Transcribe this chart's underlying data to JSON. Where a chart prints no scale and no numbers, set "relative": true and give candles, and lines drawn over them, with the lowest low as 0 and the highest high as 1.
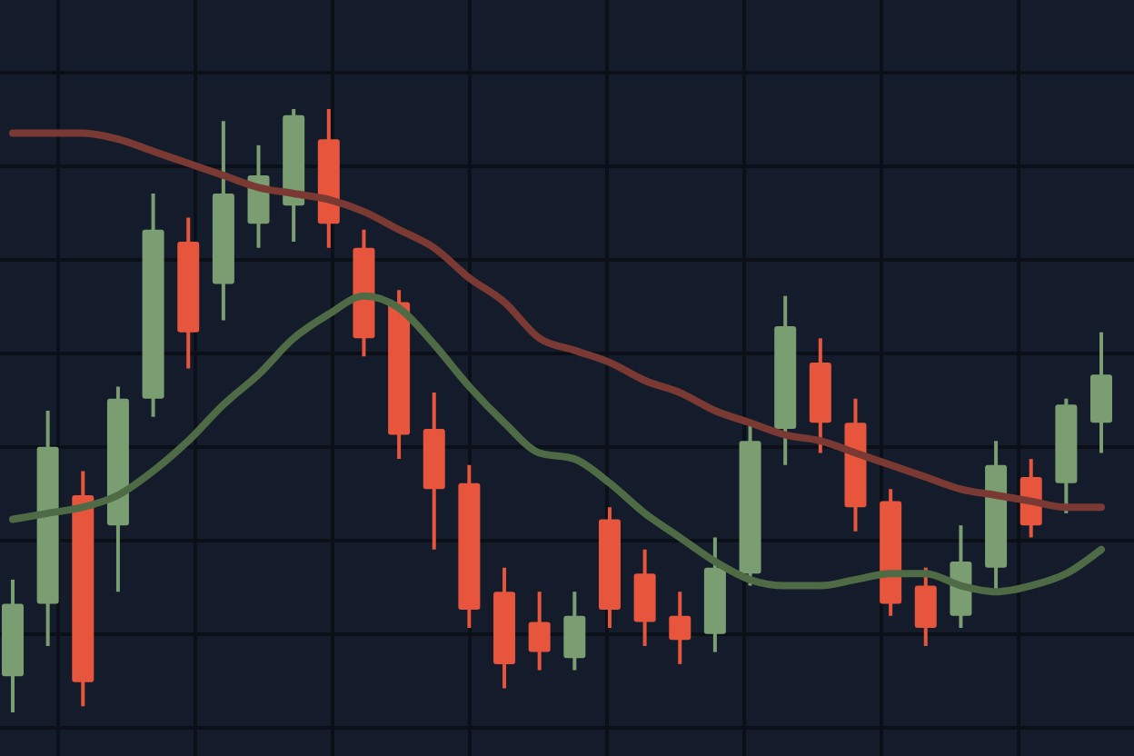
{
  "chart_data": {
    "type": "candlestick",
    "relative": true,
    "grid": true,
    "categories": [
      null,
      null,
      null,
      null,
      null,
      null,
      null,
      null,
      null,
      null,
      null,
      null,
      null,
      null,
      null,
      null,
      null,
      null,
      null,
      null,
      null,
      null,
      null,
      null,
      null,
      null,
      null,
      null,
      null,
      null,
      null,
      null
    ],
    "ohlc": [
      [
        0.06,
        0.22,
        0,
        0.18
      ],
      [
        0.18,
        0.5,
        0.11,
        0.44
      ],
      [
        0.36,
        0.4,
        0.01,
        0.05
      ],
      [
        0.31,
        0.54,
        0.2,
        0.52
      ],
      [
        0.52,
        0.86,
        0.49,
        0.8
      ],
      [
        0.78,
        0.82,
        0.57,
        0.63
      ],
      [
        0.71,
        0.98,
        0.65,
        0.86
      ],
      [
        0.81,
        0.94,
        0.77,
        0.89
      ],
      [
        0.84,
        1,
        0.78,
        0.99
      ],
      [
        0.95,
        1,
        0.77,
        0.81
      ],
      [
        0.77,
        0.8,
        0.59,
        0.62
      ],
      [
        0.68,
        0.7,
        0.42,
        0.46
      ],
      [
        0.47,
        0.53,
        0.27,
        0.37
      ],
      [
        0.38,
        0.41,
        0.14,
        0.17
      ],
      [
        0.2,
        0.24,
        0.04,
        0.08
      ],
      [
        0.15,
        0.2,
        0.07,
        0.1
      ],
      [
        0.09,
        0.2,
        0.07,
        0.16
      ],
      [
        0.32,
        0.34,
        0.14,
        0.17
      ],
      [
        0.23,
        0.27,
        0.11,
        0.15
      ],
      [
        0.16,
        0.2,
        0.08,
        0.12
      ],
      [
        0.13,
        0.29,
        0.1,
        0.24
      ],
      [
        0.23,
        0.48,
        0.21,
        0.45
      ],
      [
        0.47,
        0.69,
        0.41,
        0.64
      ],
      [
        0.58,
        0.62,
        0.43,
        0.48
      ],
      [
        0.48,
        0.52,
        0.3,
        0.34
      ],
      [
        0.35,
        0.37,
        0.16,
        0.18
      ],
      [
        0.21,
        0.24,
        0.11,
        0.14
      ],
      [
        0.16,
        0.31,
        0.14,
        0.25
      ],
      [
        0.24,
        0.45,
        0.2,
        0.41
      ],
      [
        0.39,
        0.42,
        0.29,
        0.31
      ],
      [
        0.38,
        0.52,
        0.33,
        0.51
      ],
      [
        0.48,
        0.63,
        0.43,
        0.56
      ]
    ],
    "colors": [
      "#7a9e72",
      "#7a9e72",
      "#e8553d",
      "#7a9e72",
      "#7a9e72",
      "#e8553d",
      "#7a9e72",
      "#7a9e72",
      "#7a9e72",
      "#e8553d",
      "#e8553d",
      "#e8553d",
      "#e8553d",
      "#e8553d",
      "#e8553d",
      "#e8553d",
      "#7a9e72",
      "#e8553d",
      "#e8553d",
      "#e8553d",
      "#7a9e72",
      "#7a9e72",
      "#7a9e72",
      "#e8553d",
      "#e8553d",
      "#e8553d",
      "#e8553d",
      "#7a9e72",
      "#7a9e72",
      "#e8553d",
      "#7a9e72",
      "#7a9e72"
    ],
    "series": [
      {
        "type": "line",
        "color": "#7a3a33",
        "values": [
          0.96,
          0.96,
          0.96,
          0.95,
          0.93,
          0.91,
          0.89,
          0.87,
          0.86,
          0.85,
          0.83,
          0.8,
          0.77,
          0.72,
          0.68,
          0.62,
          0.6,
          0.58,
          0.55,
          0.53,
          0.5,
          0.48,
          0.46,
          0.45,
          0.43,
          0.41,
          0.39,
          0.37,
          0.36,
          0.35,
          0.34,
          0.34
        ]
      },
      {
        "type": "line",
        "color": "#4f6b45",
        "values": [
          0.32,
          0.33,
          0.34,
          0.36,
          0.4,
          0.45,
          0.51,
          0.56,
          0.62,
          0.66,
          0.69,
          0.67,
          0.61,
          0.54,
          0.48,
          0.43,
          0.42,
          0.38,
          0.33,
          0.29,
          0.25,
          0.22,
          0.21,
          0.21,
          0.22,
          0.23,
          0.23,
          0.21,
          0.2,
          0.21,
          0.23,
          0.27
        ]
      }
    ]
  }
}
